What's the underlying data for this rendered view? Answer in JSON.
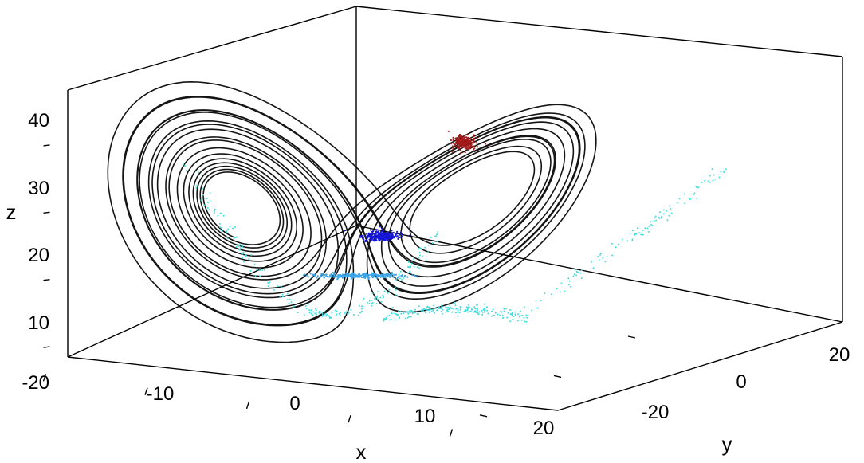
{
  "chart_data": {
    "type": "scatter",
    "projection": "3d",
    "title": "",
    "xlabel": "x",
    "ylabel": "y",
    "zlabel": "z",
    "xlim": [
      -20,
      20
    ],
    "ylim": [
      -30,
      30
    ],
    "zlim": [
      5,
      45
    ],
    "x_ticks": [
      "-20",
      "-10",
      "0",
      "10",
      "20"
    ],
    "y_ticks": [
      "-20",
      "0",
      "20"
    ],
    "z_ticks": [
      "10",
      "20",
      "30",
      "40"
    ],
    "grid": false,
    "legend": "none",
    "series": [
      {
        "kind": "line",
        "color": "#000000",
        "description": "Lorenz attractor trajectory (two-lobe butterfly)",
        "lobes": [
          {
            "center": [
              -8.5,
              -8.5,
              27
            ],
            "loops": 12
          },
          {
            "center": [
              8.5,
              8.5,
              27
            ],
            "loops": 12
          }
        ]
      },
      {
        "kind": "scatter",
        "color": "#a31a1a",
        "description": "dark red cluster",
        "center": [
          7.5,
          8,
          35
        ],
        "points": [
          [
            7.5,
            8,
            35
          ]
        ]
      },
      {
        "kind": "scatter",
        "color": "#1616d6",
        "description": "blue cluster",
        "center": [
          2,
          1,
          22
        ],
        "points": [
          [
            2,
            1,
            22
          ]
        ]
      },
      {
        "kind": "scatter",
        "color": "#3aa5e8",
        "description": "light blue band",
        "center": [
          0,
          0,
          16
        ],
        "points": [
          [
            0,
            0,
            16
          ]
        ]
      },
      {
        "kind": "scatter",
        "color": "#40e0e0",
        "description": "cyan band along the lower lobes",
        "center": [
          0,
          0,
          11
        ],
        "points": [
          [
            0,
            0,
            11
          ]
        ]
      }
    ]
  }
}
